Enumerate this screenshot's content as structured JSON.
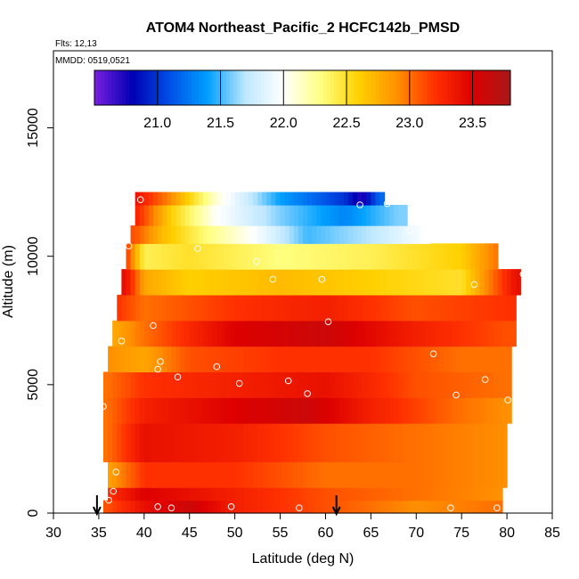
{
  "chart_data": {
    "type": "heatmap",
    "title": "ATOM4 Northeast_Pacific_2 HCFC142b_PMSD",
    "flights_label": "Flts: 12,13",
    "mmdd_label": "MMDD: 0519,0521",
    "xlabel": "Latitude (deg N)",
    "ylabel": "Altitude (m)",
    "xlim": [
      30,
      85
    ],
    "ylim": [
      0,
      18000
    ],
    "x_ticks": [
      "30",
      "35",
      "40",
      "45",
      "50",
      "55",
      "60",
      "65",
      "70",
      "75",
      "80",
      "85"
    ],
    "y_ticks": [
      "0",
      "5000",
      "10000",
      "15000"
    ],
    "colorbar": {
      "range": [
        20.5,
        23.8
      ],
      "ticks": [
        "21.0",
        "21.5",
        "22.0",
        "22.5",
        "23.0",
        "23.5"
      ],
      "tick_values": [
        21.0,
        21.5,
        22.0,
        22.5,
        23.0,
        23.5
      ],
      "colors": [
        "#7a1fe0",
        "#0000b4",
        "#0050e6",
        "#00a0ff",
        "#bfe8ff",
        "#ffffff",
        "#ffff80",
        "#ffd000",
        "#ff9000",
        "#ff3000",
        "#dd0000",
        "#a81818"
      ]
    },
    "arrows_lat": [
      34.8,
      61.2
    ],
    "layers": [
      {
        "alt_min": 0,
        "alt_max": 500,
        "lat_min": 35.5,
        "lat_max": 79.5,
        "values": [
          [
            36,
            23.1
          ],
          [
            40,
            23.4
          ],
          [
            45,
            23.6
          ],
          [
            50,
            23.3
          ],
          [
            60,
            23.1
          ],
          [
            70,
            22.9
          ],
          [
            79,
            23.0
          ]
        ]
      },
      {
        "alt_min": 500,
        "alt_max": 1000,
        "lat_min": 36.0,
        "lat_max": 79.5,
        "values": [
          [
            36,
            23.2
          ],
          [
            40,
            23.5
          ],
          [
            50,
            23.3
          ],
          [
            60,
            23.1
          ],
          [
            70,
            23.0
          ],
          [
            79,
            22.9
          ]
        ]
      },
      {
        "alt_min": 1000,
        "alt_max": 2000,
        "lat_min": 36.0,
        "lat_max": 80.0,
        "values": [
          [
            36,
            22.8
          ],
          [
            40,
            23.2
          ],
          [
            50,
            23.2
          ],
          [
            60,
            23.0
          ],
          [
            70,
            23.0
          ],
          [
            80,
            22.9
          ]
        ]
      },
      {
        "alt_min": 2000,
        "alt_max": 3500,
        "lat_min": 35.5,
        "lat_max": 80.0,
        "values": [
          [
            36,
            23.0
          ],
          [
            40,
            23.4
          ],
          [
            50,
            23.3
          ],
          [
            60,
            23.1
          ],
          [
            70,
            23.0
          ],
          [
            80,
            22.9
          ]
        ]
      },
      {
        "alt_min": 3500,
        "alt_max": 4500,
        "lat_min": 35.5,
        "lat_max": 80.5,
        "values": [
          [
            36,
            23.0
          ],
          [
            40,
            23.3
          ],
          [
            50,
            23.5
          ],
          [
            58,
            23.6
          ],
          [
            65,
            23.3
          ],
          [
            75,
            23.0
          ],
          [
            80,
            22.9
          ]
        ]
      },
      {
        "alt_min": 4500,
        "alt_max": 5500,
        "lat_min": 35.5,
        "lat_max": 80.5,
        "values": [
          [
            36,
            23.0
          ],
          [
            40,
            23.2
          ],
          [
            50,
            23.3
          ],
          [
            60,
            23.4
          ],
          [
            70,
            23.1
          ],
          [
            80,
            23.0
          ]
        ]
      },
      {
        "alt_min": 5500,
        "alt_max": 6500,
        "lat_min": 36.0,
        "lat_max": 80.5,
        "values": [
          [
            36,
            22.9
          ],
          [
            40,
            22.8
          ],
          [
            45,
            23.1
          ],
          [
            55,
            23.2
          ],
          [
            65,
            23.2
          ],
          [
            75,
            23.0
          ],
          [
            80,
            23.0
          ]
        ]
      },
      {
        "alt_min": 6500,
        "alt_max": 7500,
        "lat_min": 36.5,
        "lat_max": 81.0,
        "values": [
          [
            37,
            22.8
          ],
          [
            40,
            23.0
          ],
          [
            50,
            23.5
          ],
          [
            60,
            23.6
          ],
          [
            70,
            23.3
          ],
          [
            80,
            23.1
          ]
        ]
      },
      {
        "alt_min": 7500,
        "alt_max": 8500,
        "lat_min": 37.0,
        "lat_max": 81.0,
        "values": [
          [
            37,
            23.2
          ],
          [
            40,
            23.0
          ],
          [
            50,
            23.2
          ],
          [
            60,
            23.3
          ],
          [
            70,
            23.1
          ],
          [
            80,
            23.2
          ]
        ]
      },
      {
        "alt_min": 8500,
        "alt_max": 9500,
        "lat_min": 37.5,
        "lat_max": 81.5,
        "values": [
          [
            38,
            23.4
          ],
          [
            40,
            22.8
          ],
          [
            45,
            22.6
          ],
          [
            55,
            22.7
          ],
          [
            65,
            22.6
          ],
          [
            75,
            22.5
          ],
          [
            81,
            23.4
          ]
        ]
      },
      {
        "alt_min": 9500,
        "alt_max": 10500,
        "lat_min": 38.0,
        "lat_max": 79.0,
        "values": [
          [
            38,
            23.2
          ],
          [
            40,
            22.4
          ],
          [
            45,
            22.5
          ],
          [
            55,
            22.3
          ],
          [
            65,
            22.4
          ],
          [
            75,
            22.6
          ],
          [
            79,
            23.0
          ]
        ]
      },
      {
        "alt_min": 10500,
        "alt_max": 11200,
        "lat_min": 38.5,
        "lat_max": 71.5,
        "values": [
          [
            39,
            23.1
          ],
          [
            42,
            22.7
          ],
          [
            47,
            22.3
          ],
          [
            52,
            22.0
          ],
          [
            58,
            21.5
          ],
          [
            65,
            21.7
          ],
          [
            71,
            22.0
          ]
        ]
      },
      {
        "alt_min": 11200,
        "alt_max": 12000,
        "lat_min": 39.0,
        "lat_max": 69.0,
        "values": [
          [
            39,
            23.3
          ],
          [
            43,
            22.6
          ],
          [
            48,
            22.0
          ],
          [
            55,
            21.6
          ],
          [
            62,
            21.3
          ],
          [
            68,
            21.6
          ]
        ]
      },
      {
        "alt_min": 12000,
        "alt_max": 12500,
        "lat_min": 39.0,
        "lat_max": 66.5,
        "values": [
          [
            39,
            23.4
          ],
          [
            43,
            22.9
          ],
          [
            48,
            22.1
          ],
          [
            55,
            21.4
          ],
          [
            62,
            21.0
          ],
          [
            64,
            20.7
          ],
          [
            66,
            21.2
          ]
        ]
      }
    ],
    "points": [
      [
        39.6,
        12200
      ],
      [
        63.8,
        12000
      ],
      [
        66.8,
        12050
      ],
      [
        69.3,
        11000
      ],
      [
        45.9,
        10300
      ],
      [
        38.3,
        10400
      ],
      [
        52.4,
        9800
      ],
      [
        54.2,
        9100
      ],
      [
        59.6,
        9100
      ],
      [
        76.4,
        8900
      ],
      [
        81.8,
        9300
      ],
      [
        41.0,
        7300
      ],
      [
        60.3,
        7450
      ],
      [
        37.5,
        6700
      ],
      [
        71.9,
        6200
      ],
      [
        41.8,
        5900
      ],
      [
        41.5,
        5600
      ],
      [
        48.0,
        5700
      ],
      [
        43.7,
        5300
      ],
      [
        50.5,
        5050
      ],
      [
        55.9,
        5150
      ],
      [
        58.0,
        4650
      ],
      [
        74.4,
        4600
      ],
      [
        77.6,
        5200
      ],
      [
        80.1,
        4400
      ],
      [
        35.5,
        4150
      ],
      [
        36.9,
        1600
      ],
      [
        36.6,
        850
      ],
      [
        36.1,
        500
      ],
      [
        41.5,
        250
      ],
      [
        43.0,
        200
      ],
      [
        49.6,
        250
      ],
      [
        57.1,
        200
      ],
      [
        73.8,
        200
      ],
      [
        78.9,
        200
      ]
    ]
  }
}
